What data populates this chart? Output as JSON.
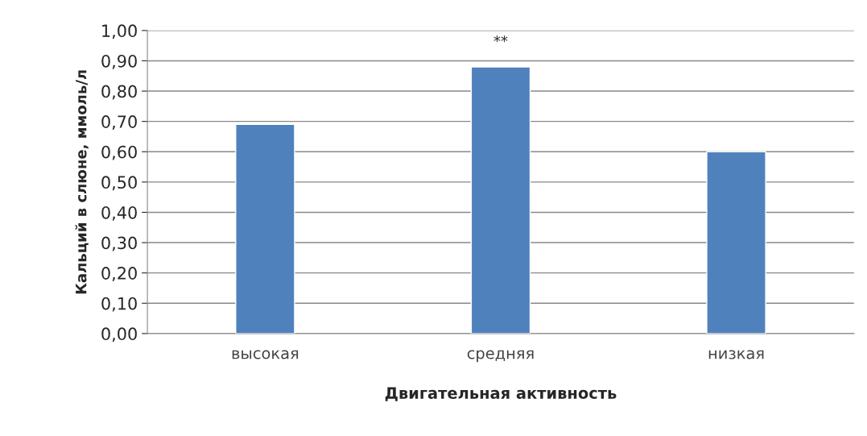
{
  "chart_data": {
    "type": "bar",
    "xlabel": "Двигательная активность",
    "ylabel": "Кальций в слюне, ммоль/л",
    "categories": [
      "высокая",
      "средняя",
      "низкая"
    ],
    "values": [
      0.69,
      0.88,
      0.6
    ],
    "color": "#4f81bd",
    "ylim": [
      0,
      1
    ],
    "yticks": [
      {
        "value": 0,
        "label": "0,00"
      },
      {
        "value": 0.1,
        "label": "0,10"
      },
      {
        "value": 0.2,
        "label": "0,20"
      },
      {
        "value": 0.3,
        "label": "0,30"
      },
      {
        "value": 0.4,
        "label": "0,40"
      },
      {
        "value": 0.5,
        "label": "0,50"
      },
      {
        "value": 0.6,
        "label": "0,60"
      },
      {
        "value": 0.7,
        "label": "0,70"
      },
      {
        "value": 0.8,
        "label": "0,80"
      },
      {
        "value": 0.9,
        "label": "0,90"
      },
      {
        "value": 1,
        "label": "1,00"
      }
    ],
    "grid": "y",
    "annotations": [
      "**"
    ]
  }
}
